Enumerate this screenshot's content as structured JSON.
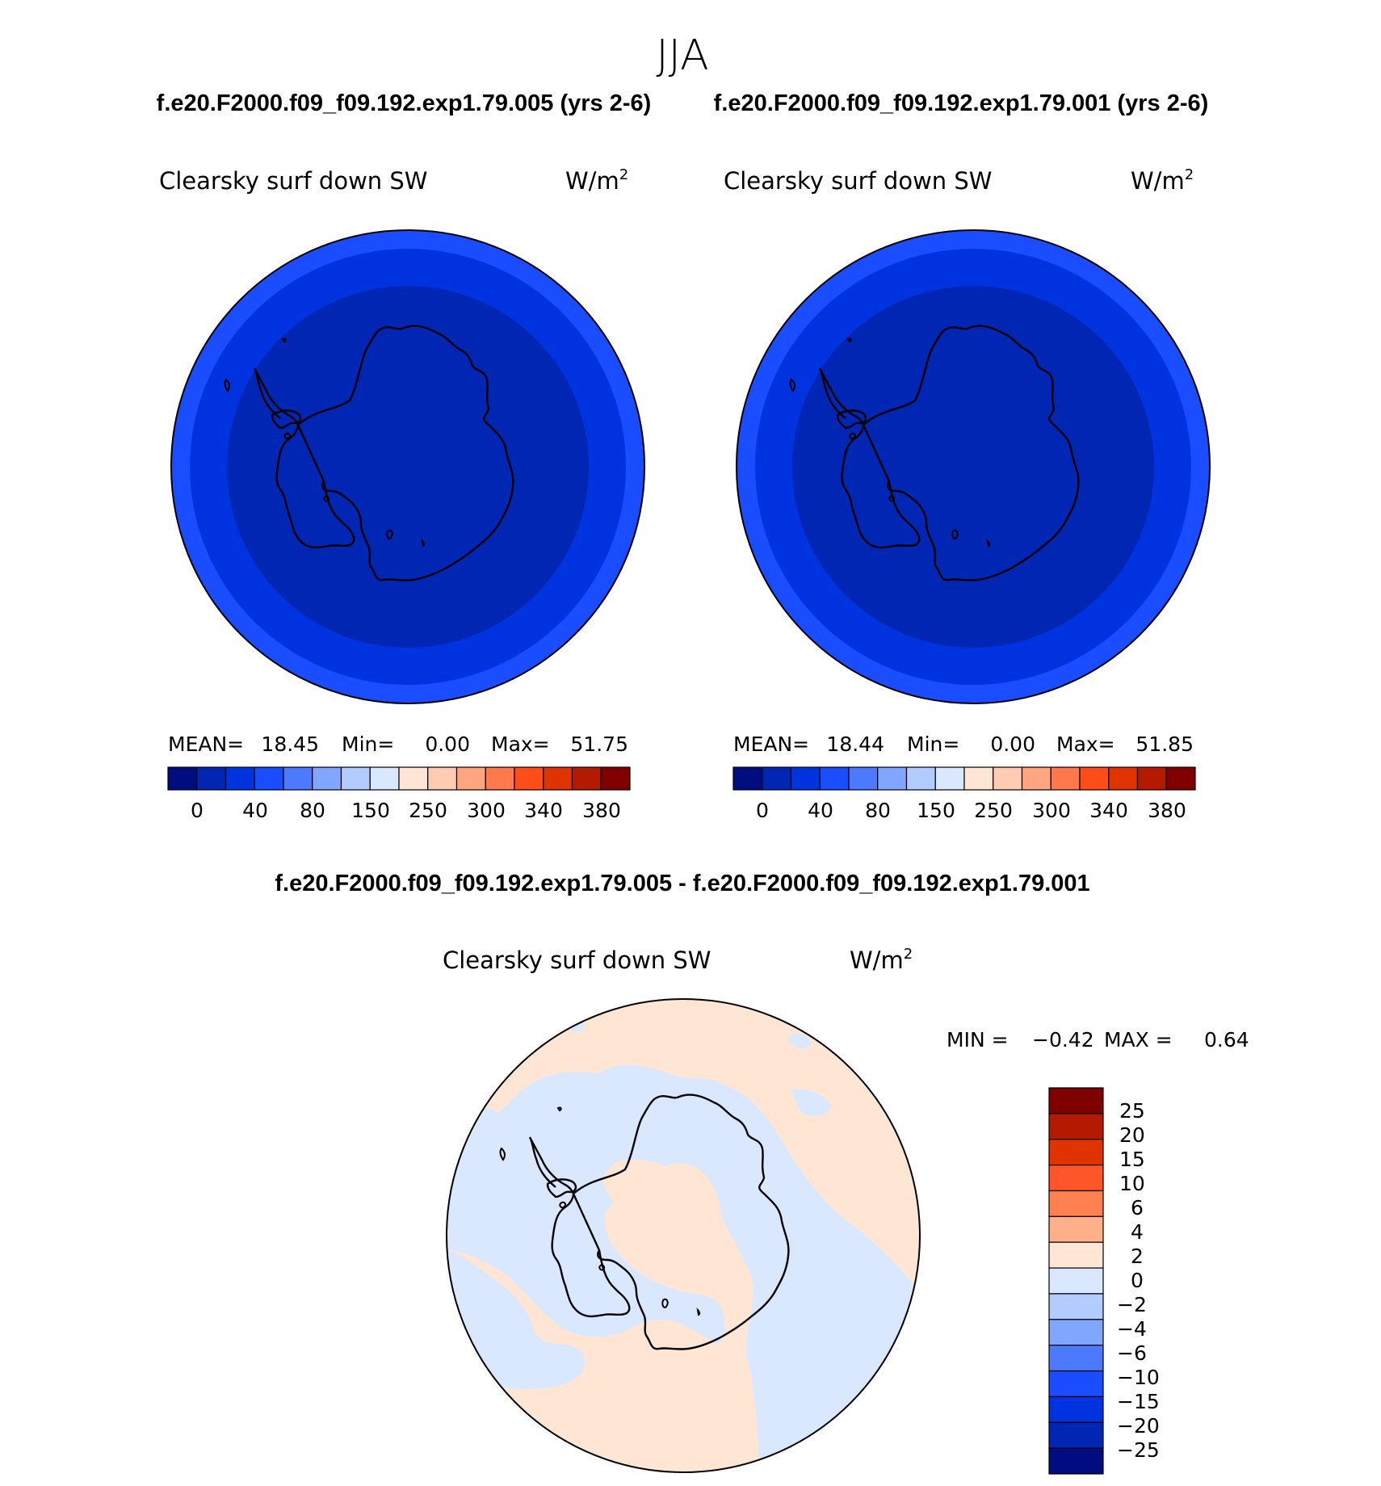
{
  "season": "JJA",
  "header": {
    "left_case": "f.e20.F2000.f09_f09.192.exp1.79.005 (yrs 2-6)",
    "right_case": "f.e20.F2000.f09_f09.192.exp1.79.001 (yrs 2-6)"
  },
  "diff_title": "f.e20.F2000.f09_f09.192.exp1.79.005 - f.e20.F2000.f09_f09.192.exp1.79.001",
  "colors": {
    "abs": [
      "#000d80",
      "#0026b3",
      "#0033e0",
      "#1a4dff",
      "#4d79ff",
      "#80a6ff",
      "#b3ccff",
      "#d9e8ff",
      "#ffe6d4",
      "#ffccb3",
      "#ffa680",
      "#ff794d",
      "#ff4d1a",
      "#e03300",
      "#b31a00",
      "#800000"
    ],
    "diff": [
      "#000d80",
      "#0026b3",
      "#0033e0",
      "#1a4dff",
      "#4d79ff",
      "#80a6ff",
      "#b3ccff",
      "#d9e8ff",
      "#ffe6d4",
      "#ffb08a",
      "#ff8050",
      "#ff5528",
      "#e03300",
      "#b31a00",
      "#800000"
    ]
  },
  "panels": [
    {
      "id": "left",
      "variable": "Clearsky surf down SW",
      "units": "W/m",
      "units_sup": "2",
      "stats": {
        "mean_label": "MEAN=",
        "mean": "18.45",
        "min_label": "Min=",
        "min": "0.00",
        "max_label": "Max=",
        "max": "51.75"
      },
      "colorbar_labels": [
        "0",
        "40",
        "80",
        "150",
        "250",
        "300",
        "340",
        "380"
      ],
      "ring_levels": [
        {
          "band": "outer",
          "class_index": 3
        },
        {
          "band": "middle",
          "class_index": 2
        },
        {
          "band": "inner",
          "class_index": 1
        }
      ]
    },
    {
      "id": "right",
      "variable": "Clearsky surf down SW",
      "units": "W/m",
      "units_sup": "2",
      "stats": {
        "mean_label": "MEAN=",
        "mean": "18.44",
        "min_label": "Min=",
        "min": "0.00",
        "max_label": "Max=",
        "max": "51.85"
      },
      "colorbar_labels": [
        "0",
        "40",
        "80",
        "150",
        "250",
        "300",
        "340",
        "380"
      ],
      "ring_levels": [
        {
          "band": "outer",
          "class_index": 3
        },
        {
          "band": "middle",
          "class_index": 2
        },
        {
          "band": "inner",
          "class_index": 1
        }
      ]
    }
  ],
  "diff_panel": {
    "variable": "Clearsky surf down SW",
    "units": "W/m",
    "units_sup": "2",
    "min_label": "MIN =",
    "min": "−0.42",
    "max_label": "MAX =",
    "max": "0.64",
    "colorbar_labels": [
      "25",
      "20",
      "15",
      "10",
      "6",
      "4",
      "2",
      "0",
      "−2",
      "−4",
      "−6",
      "−10",
      "−15",
      "−20",
      "−25"
    ],
    "positive_color": "#ffe6d4",
    "negative_color": "#d9e8ff"
  }
}
